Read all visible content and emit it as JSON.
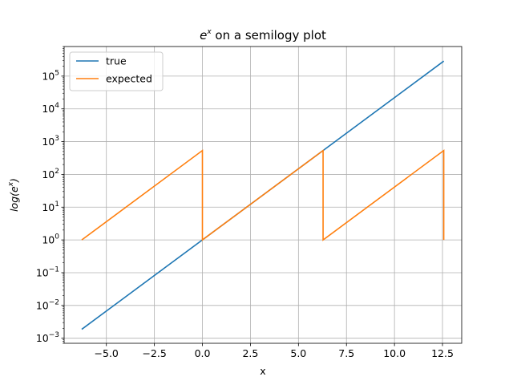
{
  "chart_data": {
    "type": "line",
    "title": "e^x on a semilogy plot",
    "title_parts": {
      "base": "e",
      "exp": "x",
      "rest": " on a semilogy plot"
    },
    "xlabel": "x",
    "ylabel": "log(e^x)",
    "ylabel_parts": {
      "pre": "log(e",
      "exp": "x",
      "post": ")"
    },
    "xlim": [
      -7.2,
      13.5
    ],
    "ylim": [
      0.0007,
      800000
    ],
    "yscale": "log",
    "grid": true,
    "legend_position": "top-left",
    "x_ticks": [
      -5.0,
      -2.5,
      0.0,
      2.5,
      5.0,
      7.5,
      10.0,
      12.5
    ],
    "x_tick_labels": [
      "−5.0",
      "−2.5",
      "0.0",
      "2.5",
      "5.0",
      "7.5",
      "10.0",
      "12.5"
    ],
    "y_ticks": [
      0.001,
      0.01,
      0.1,
      1,
      10,
      100,
      1000,
      10000,
      100000
    ],
    "y_tick_labels": [
      {
        "base": "10",
        "exp": "−3"
      },
      {
        "base": "10",
        "exp": "−2"
      },
      {
        "base": "10",
        "exp": "−1"
      },
      {
        "base": "10",
        "exp": "0"
      },
      {
        "base": "10",
        "exp": "1"
      },
      {
        "base": "10",
        "exp": "2"
      },
      {
        "base": "10",
        "exp": "3"
      },
      {
        "base": "10",
        "exp": "4"
      },
      {
        "base": "10",
        "exp": "5"
      }
    ],
    "series": [
      {
        "name": "true",
        "color": "#1f77b4",
        "points": [
          [
            -6.283,
            0.00187
          ],
          [
            12.566,
            286751
          ]
        ]
      },
      {
        "name": "expected",
        "color": "#ff7f0e",
        "points": [
          [
            -6.283,
            1
          ],
          [
            0,
            535.5
          ],
          [
            0,
            1
          ],
          [
            6.283,
            535.5
          ],
          [
            6.283,
            1
          ],
          [
            12.566,
            535.5
          ],
          [
            12.566,
            1
          ]
        ]
      }
    ]
  }
}
